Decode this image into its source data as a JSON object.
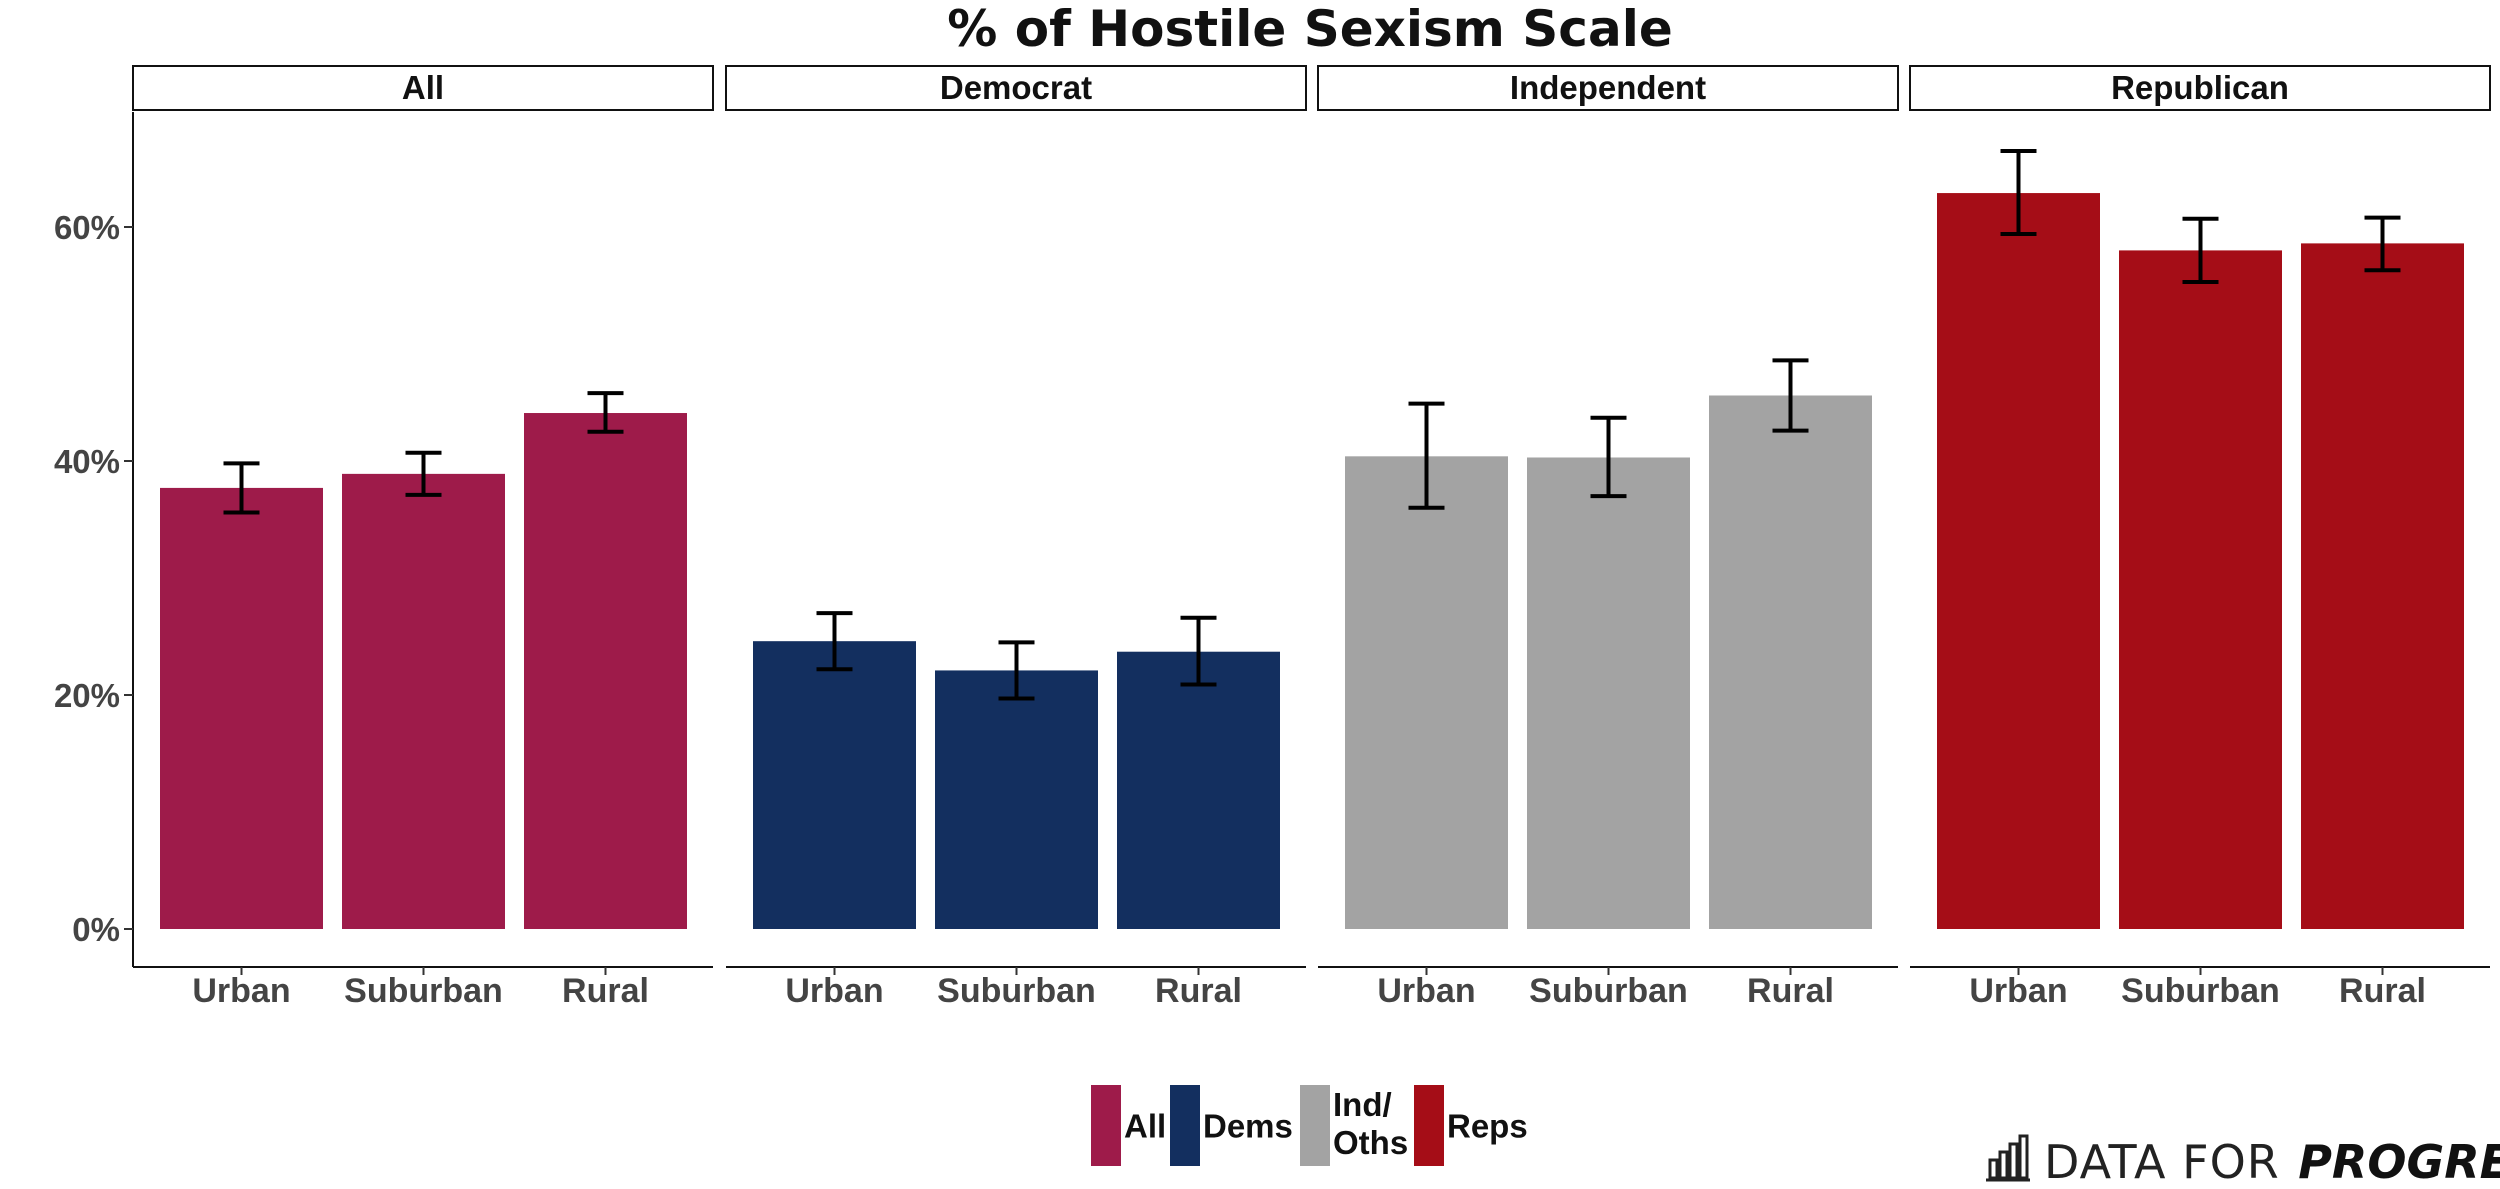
{
  "chart_data": {
    "type": "bar",
    "title": "% of Hostile Sexism Scale",
    "panels": [
      {
        "name": "All",
        "legend_key": "All",
        "color": "#9e1b4a",
        "categories": [
          "Urban",
          "Suburban",
          "Rural"
        ],
        "values": [
          37.7,
          38.9,
          44.1
        ],
        "error_low": [
          35.6,
          37.1,
          42.5
        ],
        "error_high": [
          39.8,
          40.7,
          45.8
        ]
      },
      {
        "name": "Democrat",
        "legend_key": "Dems",
        "color": "#132f5f",
        "categories": [
          "Urban",
          "Suburban",
          "Rural"
        ],
        "values": [
          24.6,
          22.1,
          23.7
        ],
        "error_low": [
          22.2,
          19.7,
          20.9
        ],
        "error_high": [
          27.0,
          24.5,
          26.6
        ]
      },
      {
        "name": "Independent",
        "legend_key": "Ind/\nOths",
        "color": "#a3a3a3",
        "categories": [
          "Urban",
          "Suburban",
          "Rural"
        ],
        "values": [
          40.4,
          40.3,
          45.6
        ],
        "error_low": [
          36.0,
          37.0,
          42.6
        ],
        "error_high": [
          44.9,
          43.7,
          48.6
        ]
      },
      {
        "name": "Republican",
        "legend_key": "Reps",
        "color": "#a50d17",
        "categories": [
          "Urban",
          "Suburban",
          "Rural"
        ],
        "values": [
          62.9,
          58.0,
          58.6
        ],
        "error_low": [
          59.4,
          55.3,
          56.3
        ],
        "error_high": [
          66.5,
          60.7,
          60.8
        ]
      }
    ],
    "ylim": [
      0,
      70
    ],
    "yticks": [
      0,
      20,
      40,
      60
    ],
    "ytick_labels": [
      "0%",
      "20%",
      "40%",
      "60%"
    ],
    "legend": {
      "position": "bottom",
      "entries": [
        "All",
        "Dems",
        "Ind/\nOths",
        "Reps"
      ]
    },
    "grid": false
  },
  "branding": {
    "light": "DATA FOR",
    "bold": "PROGRESS"
  }
}
